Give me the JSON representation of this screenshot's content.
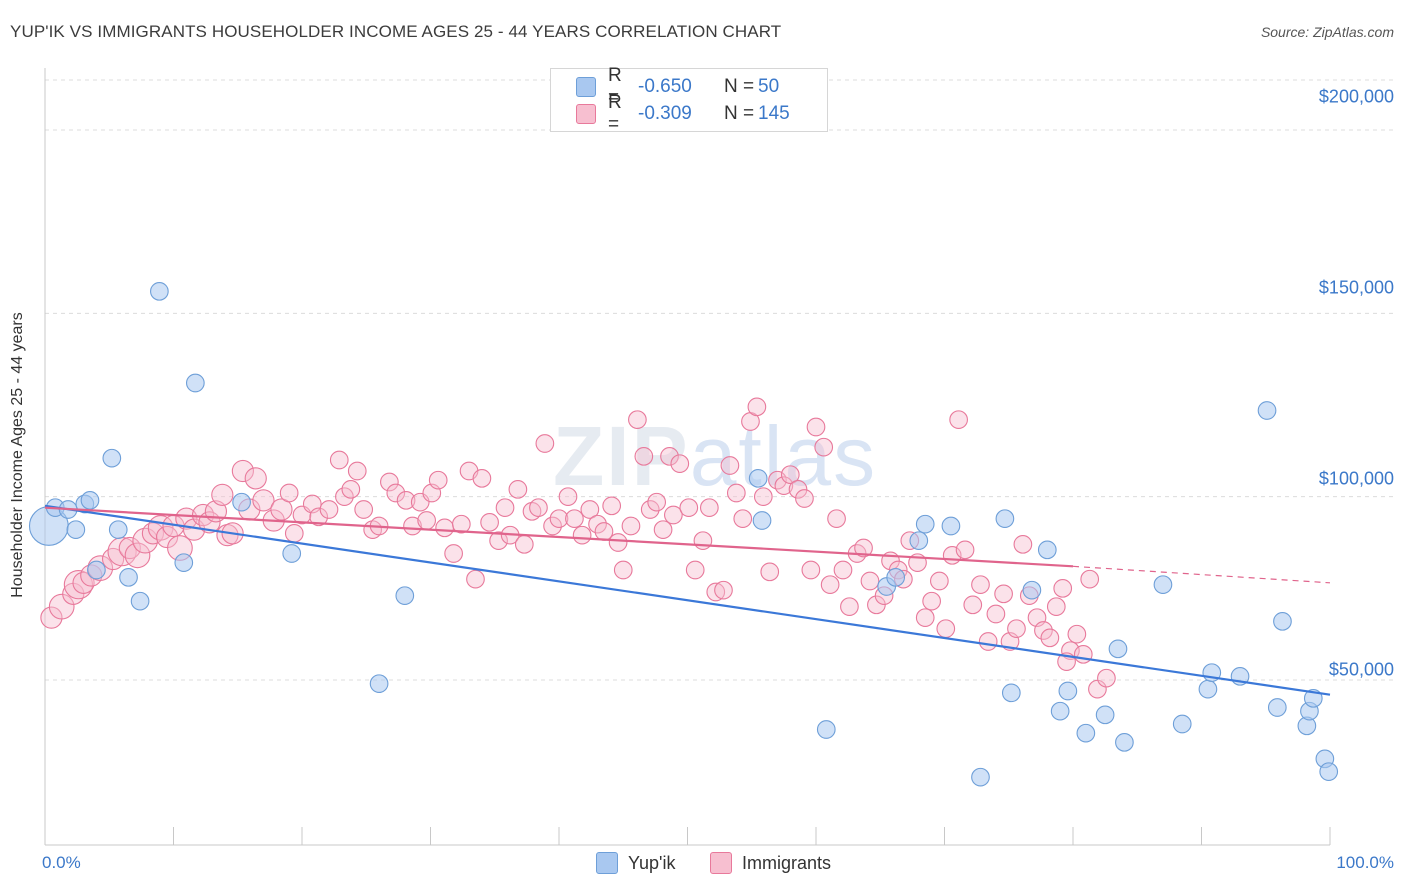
{
  "title": "YUP'IK VS IMMIGRANTS HOUSEHOLDER INCOME AGES 25 - 44 YEARS CORRELATION CHART",
  "source": "Source: ZipAtlas.com",
  "watermark": {
    "zip": "ZIP",
    "atlas": "atlas"
  },
  "legend": {
    "r_label": "R =",
    "n_label": "N =",
    "items": [
      {
        "name": "Yup'ik",
        "r": "-0.650",
        "n": "50",
        "color": "#a9c8f0",
        "border": "#6e9fd8"
      },
      {
        "name": "Immigrants",
        "r": "-0.309",
        "n": "145",
        "color": "#f7bfd0",
        "border": "#e8799b"
      }
    ]
  },
  "chart_data": {
    "type": "scatter",
    "title": "YUP'IK VS IMMIGRANTS HOUSEHOLDER INCOME AGES 25 - 44 YEARS CORRELATION CHART",
    "xlabel": "",
    "ylabel": "Householder Income Ages 25 - 44 years",
    "xlim": [
      0,
      100
    ],
    "ylim": [
      5000,
      215000
    ],
    "x_tick_labels": [
      "0.0%",
      "100.0%"
    ],
    "y_ticks": [
      50000,
      100000,
      150000,
      200000
    ],
    "y_tick_labels": [
      "$50,000",
      "$100,000",
      "$150,000",
      "$200,000"
    ],
    "grid": true,
    "legend_position": "top-center",
    "series": [
      {
        "name": "Yup'ik",
        "color": "#6e9fd8",
        "trend": {
          "x": [
            0,
            100
          ],
          "y": [
            97500,
            46000
          ],
          "color": "#3b78d8"
        },
        "points": [
          [
            0.3,
            92000,
            22
          ],
          [
            0.8,
            97000,
            10
          ],
          [
            1.8,
            96500,
            10
          ],
          [
            2.4,
            91000,
            10
          ],
          [
            3.1,
            98000,
            10
          ],
          [
            3.5,
            99000,
            10
          ],
          [
            4.0,
            80000,
            10
          ],
          [
            5.2,
            110500,
            10
          ],
          [
            5.7,
            91000,
            10
          ],
          [
            6.5,
            78000,
            10
          ],
          [
            7.4,
            71500,
            10
          ],
          [
            8.9,
            156000,
            10
          ],
          [
            10.8,
            82000,
            10
          ],
          [
            11.7,
            131000,
            10
          ],
          [
            15.3,
            98500,
            10
          ],
          [
            19.2,
            84500,
            10
          ],
          [
            28.0,
            73000,
            10
          ],
          [
            26.0,
            49000,
            10
          ],
          [
            55.5,
            105000,
            10
          ],
          [
            55.8,
            93500,
            10
          ],
          [
            60.8,
            36500,
            10
          ],
          [
            65.5,
            75500,
            10
          ],
          [
            68.5,
            92500,
            10
          ],
          [
            68.0,
            88000,
            10
          ],
          [
            66.2,
            78000,
            10
          ],
          [
            70.5,
            92000,
            10
          ],
          [
            72.8,
            23500,
            10
          ],
          [
            74.7,
            94000,
            10
          ],
          [
            75.2,
            46500,
            10
          ],
          [
            76.8,
            74500,
            10
          ],
          [
            78.0,
            85500,
            10
          ],
          [
            79.0,
            41500,
            10
          ],
          [
            79.6,
            47000,
            10
          ],
          [
            81.0,
            35500,
            10
          ],
          [
            82.5,
            40500,
            10
          ],
          [
            83.5,
            58500,
            10
          ],
          [
            84.0,
            33000,
            10
          ],
          [
            87.0,
            76000,
            10
          ],
          [
            88.5,
            38000,
            10
          ],
          [
            90.5,
            47500,
            10
          ],
          [
            90.8,
            52000,
            10
          ],
          [
            93.0,
            51000,
            10
          ],
          [
            95.1,
            123500,
            10
          ],
          [
            95.9,
            42500,
            10
          ],
          [
            96.3,
            66000,
            10
          ],
          [
            98.2,
            37500,
            10
          ],
          [
            98.4,
            41500,
            10
          ],
          [
            98.7,
            45000,
            10
          ],
          [
            99.6,
            28500,
            10
          ],
          [
            99.9,
            25000,
            10
          ]
        ]
      },
      {
        "name": "Immigrants",
        "color": "#e8799b",
        "trend": {
          "x": [
            0,
            80
          ],
          "y": [
            97000,
            81000
          ],
          "color": "#e0648c",
          "dashed_to": [
            100,
            76500
          ]
        },
        "points": [
          [
            0.5,
            67000,
            12
          ],
          [
            1.3,
            70000,
            14
          ],
          [
            2.2,
            73500,
            12
          ],
          [
            2.6,
            76000,
            16
          ],
          [
            3.0,
            76500,
            12
          ],
          [
            3.6,
            78500,
            12
          ],
          [
            4.3,
            80500,
            14
          ],
          [
            5.3,
            83000,
            12
          ],
          [
            6.0,
            85000,
            16
          ],
          [
            6.6,
            86000,
            12
          ],
          [
            7.2,
            84000,
            14
          ],
          [
            7.8,
            88000,
            14
          ],
          [
            8.4,
            90000,
            12
          ],
          [
            9.0,
            91500,
            14
          ],
          [
            9.5,
            89000,
            12
          ],
          [
            10.0,
            92000,
            12
          ],
          [
            10.5,
            86000,
            14
          ],
          [
            11.0,
            94000,
            12
          ],
          [
            11.6,
            91000,
            12
          ],
          [
            12.3,
            95000,
            12
          ],
          [
            12.8,
            93000,
            12
          ],
          [
            13.3,
            96000,
            12
          ],
          [
            13.8,
            100500,
            12
          ],
          [
            14.2,
            89500,
            12
          ],
          [
            14.6,
            90000,
            12
          ],
          [
            15.4,
            107000,
            12
          ],
          [
            15.9,
            96500,
            12
          ],
          [
            16.4,
            105000,
            12
          ],
          [
            17.0,
            99000,
            12
          ],
          [
            17.8,
            93500,
            12
          ],
          [
            18.4,
            96500,
            12
          ],
          [
            19.0,
            101000,
            10
          ],
          [
            19.4,
            90000,
            10
          ],
          [
            20.0,
            95000,
            10
          ],
          [
            20.8,
            98000,
            10
          ],
          [
            21.3,
            94500,
            10
          ],
          [
            22.1,
            96500,
            10
          ],
          [
            22.9,
            110000,
            10
          ],
          [
            23.3,
            100000,
            10
          ],
          [
            23.8,
            102000,
            10
          ],
          [
            24.3,
            107000,
            10
          ],
          [
            24.8,
            96500,
            10
          ],
          [
            25.5,
            91000,
            10
          ],
          [
            26.0,
            92000,
            10
          ],
          [
            26.8,
            104000,
            10
          ],
          [
            27.3,
            101000,
            10
          ],
          [
            28.1,
            99000,
            10
          ],
          [
            28.6,
            92000,
            10
          ],
          [
            29.2,
            98500,
            10
          ],
          [
            29.7,
            93500,
            10
          ],
          [
            30.1,
            101000,
            10
          ],
          [
            30.6,
            104500,
            10
          ],
          [
            31.1,
            91500,
            10
          ],
          [
            31.8,
            84500,
            10
          ],
          [
            32.4,
            92500,
            10
          ],
          [
            33.0,
            107000,
            10
          ],
          [
            33.5,
            77500,
            10
          ],
          [
            34.0,
            105000,
            10
          ],
          [
            34.6,
            93000,
            10
          ],
          [
            35.3,
            88000,
            10
          ],
          [
            35.8,
            97000,
            10
          ],
          [
            36.2,
            89500,
            10
          ],
          [
            36.8,
            102000,
            10
          ],
          [
            37.3,
            87000,
            10
          ],
          [
            37.9,
            96000,
            10
          ],
          [
            38.4,
            97000,
            10
          ],
          [
            38.9,
            114500,
            10
          ],
          [
            39.5,
            92000,
            10
          ],
          [
            40.0,
            94000,
            10
          ],
          [
            40.7,
            100000,
            10
          ],
          [
            41.2,
            94000,
            10
          ],
          [
            41.8,
            89500,
            10
          ],
          [
            42.4,
            96500,
            10
          ],
          [
            43.0,
            92500,
            10
          ],
          [
            43.5,
            90500,
            10
          ],
          [
            44.1,
            97500,
            10
          ],
          [
            44.6,
            87500,
            10
          ],
          [
            45.0,
            80000,
            10
          ],
          [
            45.6,
            92000,
            10
          ],
          [
            46.1,
            121000,
            10
          ],
          [
            46.6,
            111000,
            10
          ],
          [
            47.1,
            96500,
            10
          ],
          [
            47.6,
            98500,
            10
          ],
          [
            48.1,
            91000,
            10
          ],
          [
            48.6,
            111000,
            10
          ],
          [
            48.9,
            95000,
            10
          ],
          [
            49.4,
            109000,
            10
          ],
          [
            50.1,
            97000,
            10
          ],
          [
            50.6,
            80000,
            10
          ],
          [
            51.2,
            88000,
            10
          ],
          [
            51.7,
            97000,
            10
          ],
          [
            52.2,
            74000,
            10
          ],
          [
            52.8,
            74500,
            10
          ],
          [
            53.3,
            108500,
            10
          ],
          [
            53.8,
            101000,
            10
          ],
          [
            54.3,
            94000,
            10
          ],
          [
            54.9,
            120500,
            10
          ],
          [
            55.4,
            124500,
            10
          ],
          [
            55.9,
            100000,
            10
          ],
          [
            56.4,
            79500,
            10
          ],
          [
            57.0,
            104500,
            10
          ],
          [
            57.5,
            103000,
            10
          ],
          [
            58.0,
            106000,
            10
          ],
          [
            58.6,
            102000,
            10
          ],
          [
            59.1,
            99500,
            10
          ],
          [
            59.6,
            80000,
            10
          ],
          [
            60.0,
            119000,
            10
          ],
          [
            60.6,
            113500,
            10
          ],
          [
            61.1,
            76000,
            10
          ],
          [
            61.6,
            94000,
            10
          ],
          [
            62.1,
            80000,
            10
          ],
          [
            62.6,
            70000,
            10
          ],
          [
            63.2,
            84500,
            10
          ],
          [
            63.7,
            86000,
            10
          ],
          [
            64.2,
            77000,
            10
          ],
          [
            64.7,
            70500,
            10
          ],
          [
            65.3,
            73000,
            10
          ],
          [
            65.8,
            82500,
            10
          ],
          [
            66.4,
            80000,
            10
          ],
          [
            66.8,
            77500,
            10
          ],
          [
            67.3,
            88000,
            10
          ],
          [
            67.9,
            82000,
            10
          ],
          [
            68.5,
            67000,
            10
          ],
          [
            69.0,
            71500,
            10
          ],
          [
            69.6,
            77000,
            10
          ],
          [
            70.1,
            64000,
            10
          ],
          [
            70.6,
            84000,
            10
          ],
          [
            71.1,
            121000,
            10
          ],
          [
            71.6,
            85500,
            10
          ],
          [
            72.2,
            70500,
            10
          ],
          [
            72.8,
            76000,
            10
          ],
          [
            73.4,
            60500,
            10
          ],
          [
            74.0,
            68000,
            10
          ],
          [
            74.6,
            73500,
            10
          ],
          [
            75.1,
            60500,
            10
          ],
          [
            75.6,
            64000,
            10
          ],
          [
            76.1,
            87000,
            10
          ],
          [
            76.6,
            73000,
            10
          ],
          [
            77.2,
            67000,
            10
          ],
          [
            77.7,
            63500,
            10
          ],
          [
            78.2,
            61500,
            10
          ],
          [
            78.7,
            70000,
            10
          ],
          [
            79.2,
            75000,
            10
          ],
          [
            79.8,
            58000,
            10
          ],
          [
            80.3,
            62500,
            10
          ],
          [
            80.8,
            57000,
            10
          ],
          [
            81.3,
            77500,
            10
          ],
          [
            81.9,
            47500,
            10
          ],
          [
            82.6,
            50500,
            10
          ],
          [
            79.5,
            55000,
            10
          ]
        ]
      }
    ]
  }
}
